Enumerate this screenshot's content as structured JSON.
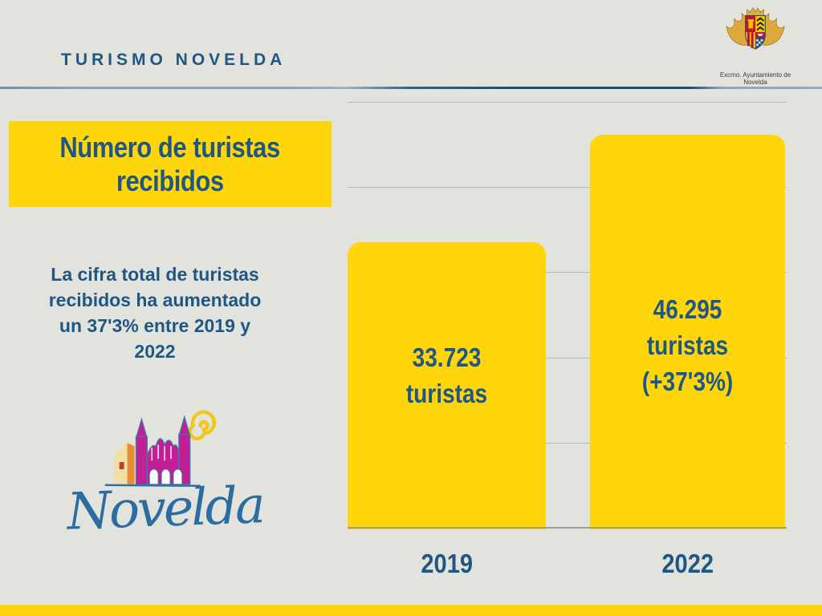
{
  "header": {
    "brand": "TURISMO NOVELDA",
    "crest_caption": "Excmo. Ayuntamiento de Novelda"
  },
  "title_box": {
    "line1": "Número de turistas",
    "line2": "recibidos"
  },
  "summary": {
    "lines": [
      "La cifra total de turistas",
      "recibidos ha aumentado",
      "un 37'3% entre 2019 y",
      "2022"
    ]
  },
  "logo": {
    "wordmark": "Novelda"
  },
  "chart_data": {
    "type": "bar",
    "title": "Número de turistas recibidos",
    "categories": [
      "2019",
      "2022"
    ],
    "values": [
      33723,
      46295
    ],
    "bar_labels": [
      [
        "33.723",
        "turistas"
      ],
      [
        "46.295",
        "turistas",
        "(+37'3%)"
      ]
    ],
    "increase_note": "+37'3%",
    "ylim": [
      0,
      50000
    ],
    "gridline_step": 10000,
    "grid": true,
    "legend": "none",
    "bar_color": "#FFD60B",
    "label_color": "#1F5784"
  },
  "colors": {
    "background": "#E3E3DE",
    "accent_yellow": "#FFD60B",
    "text_blue": "#1F5784",
    "grid_gray": "#B9B9B3",
    "axis_gray": "#9E9E99",
    "divider_navy": "#1F4E79",
    "divider_steel": "#8AA4BC",
    "logo_magenta": "#C11F96",
    "logo_orange": "#E78E35",
    "logo_script_blue": "#2B6DA1"
  }
}
